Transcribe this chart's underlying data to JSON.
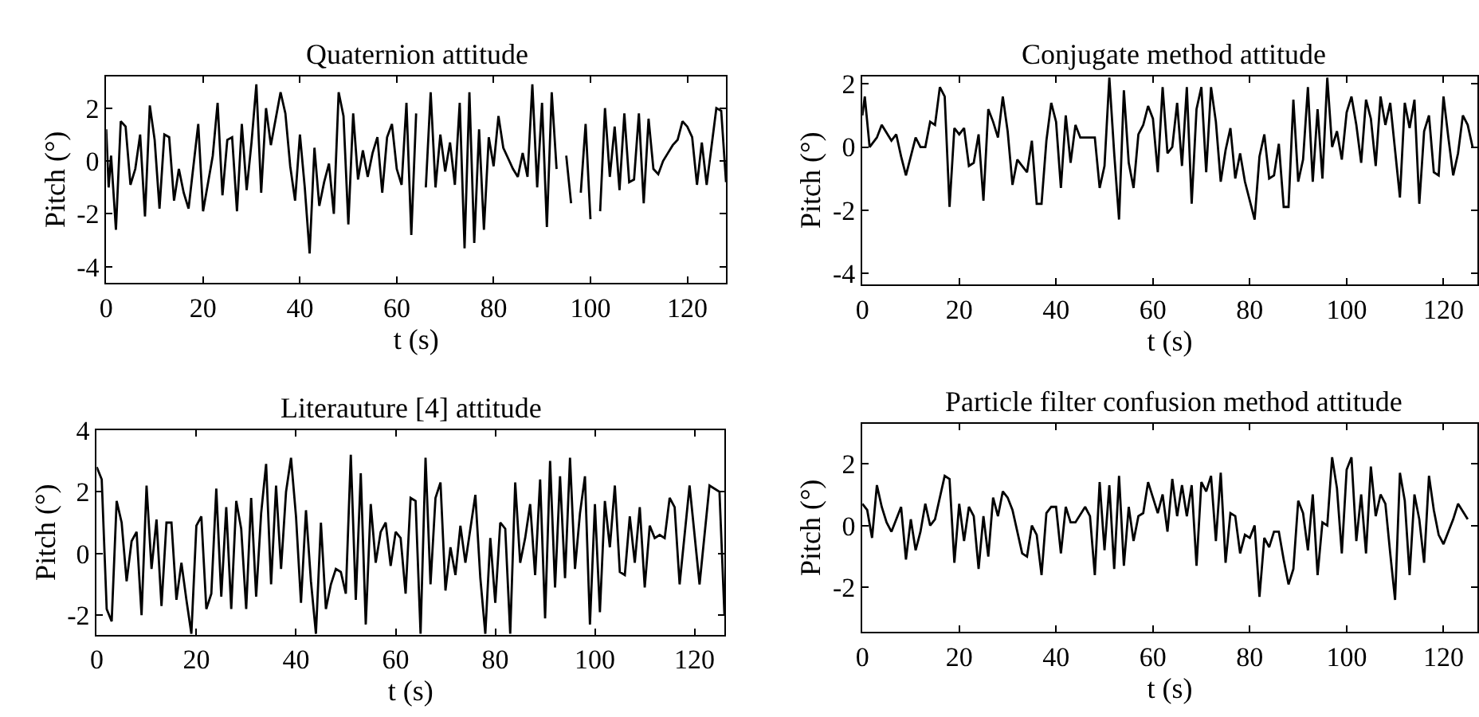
{
  "chart_data": [
    {
      "type": "line",
      "title": "Quaternion attitude",
      "xlabel": "t (s)",
      "ylabel": "Pitch (°)",
      "xlim": [
        0,
        128
      ],
      "ylim": [
        -4.6,
        3.2
      ],
      "xticks": [
        0,
        20,
        40,
        60,
        80,
        100,
        120
      ],
      "yticks": [
        -4,
        -2,
        0,
        2
      ],
      "line_style": "solid",
      "series": [
        {
          "color": "#000000",
          "x": [
            0,
            0.5,
            1,
            2,
            3,
            4,
            5,
            6,
            7,
            8,
            9,
            10,
            11,
            12,
            13,
            14,
            15,
            16,
            17,
            19,
            20,
            22,
            23,
            24,
            25,
            26,
            27,
            28,
            29,
            30,
            31,
            32,
            33,
            34,
            36,
            37,
            38,
            39,
            40,
            41,
            42,
            43,
            44,
            45,
            46,
            47,
            48,
            49,
            50,
            51,
            52,
            53,
            54,
            55,
            56,
            57,
            58,
            59,
            60,
            61,
            62,
            63,
            64,
            65,
            66,
            67,
            68,
            69,
            70,
            71,
            72,
            73,
            74,
            75,
            76,
            77,
            78,
            79,
            80,
            81,
            82,
            83,
            84,
            85,
            86,
            87,
            88,
            89,
            90,
            91,
            92,
            93,
            94,
            95,
            96,
            97,
            98,
            99,
            100,
            101,
            102,
            103,
            104,
            105,
            106,
            107,
            108,
            109,
            110,
            111,
            112,
            113,
            114,
            115,
            116,
            117,
            118,
            119,
            120,
            121,
            122,
            123,
            124,
            126,
            127,
            128
          ],
          "values": [
            1.2,
            -1.0,
            0.2,
            -2.6,
            1.5,
            1.3,
            -0.9,
            -0.3,
            1.0,
            -2.1,
            2.1,
            0.8,
            -1.8,
            1.0,
            0.9,
            -1.5,
            -0.3,
            -1.2,
            -1.8,
            1.4,
            -1.9,
            0.2,
            2.2,
            -1.3,
            0.8,
            0.9,
            -1.9,
            1.4,
            -1.1,
            0.7,
            2.9,
            -1.2,
            2.0,
            0.6,
            2.6,
            1.8,
            -0.2,
            -1.5,
            1.0,
            -1.0,
            -3.5,
            0.5,
            -1.7,
            -0.8,
            -0.1,
            -2.0,
            2.6,
            1.7,
            -2.4,
            1.8,
            -0.7,
            0.4,
            -0.6,
            0.3,
            0.9,
            -1.2,
            0.9,
            1.4,
            -0.3,
            -0.9,
            2.2,
            -2.8,
            1.8,
            null,
            -1.0,
            2.6,
            -1.0,
            1.0,
            -0.4,
            0.7,
            -0.9,
            2.2,
            -3.3,
            2.6,
            -3.1,
            1.2,
            -2.6,
            0.9,
            -0.2,
            1.7,
            0.5,
            0.1,
            -0.3,
            -0.6,
            0.3,
            -0.6,
            2.9,
            -1.0,
            2.2,
            -2.5,
            2.6,
            -0.3,
            null,
            0.2,
            -1.6,
            null,
            -1.2,
            1.4,
            -2.2,
            null,
            -1.9,
            2.0,
            -0.6,
            1.3,
            -1.1,
            1.8,
            -0.8,
            -0.7,
            1.8,
            -1.6,
            1.6,
            -0.3,
            -0.5,
            0.0,
            0.3,
            0.6,
            0.8,
            1.5,
            1.3,
            0.9,
            -0.9,
            0.7,
            -0.9,
            2.0,
            1.9,
            -0.8
          ]
        }
      ]
    },
    {
      "type": "line",
      "title": "Conjugate method attitude",
      "xlabel": "t (s)",
      "ylabel": "Pitch (°)",
      "xlim": [
        0,
        127
      ],
      "ylim": [
        -4.35,
        2.24
      ],
      "xticks": [
        0,
        20,
        40,
        60,
        80,
        100,
        120
      ],
      "yticks": [
        -4,
        -2,
        0,
        2
      ],
      "line_style": "solid",
      "series": [
        {
          "color": "#000000",
          "x": [
            0,
            0.5,
            1.5,
            3,
            4,
            6,
            7,
            8,
            9,
            11,
            12,
            13,
            14,
            15,
            16,
            17,
            18,
            19,
            20,
            21,
            22,
            23,
            24,
            25,
            26,
            27,
            28,
            29,
            30,
            31,
            32,
            33,
            34,
            35,
            36,
            37,
            38,
            39,
            40,
            41,
            42,
            43,
            44,
            45,
            48,
            49,
            50,
            51,
            52,
            53,
            54,
            55,
            56,
            57,
            58,
            59,
            60,
            61,
            62,
            63,
            64,
            65,
            66,
            67,
            68,
            69,
            70,
            71,
            72,
            73,
            74,
            75,
            76,
            77,
            78,
            79,
            81,
            82,
            83,
            84,
            85,
            86,
            87,
            88,
            89,
            90,
            91,
            92,
            93,
            94,
            95,
            96,
            97,
            98,
            99,
            100,
            101,
            102,
            103,
            104,
            105,
            106,
            107,
            108,
            109,
            111,
            112,
            113,
            114,
            115,
            116,
            117,
            118,
            119,
            120,
            121,
            122,
            123,
            124,
            125,
            126
          ],
          "values": [
            1.0,
            1.6,
            0.0,
            0.3,
            0.7,
            0.2,
            0.4,
            -0.3,
            -0.9,
            0.3,
            0.0,
            0.0,
            0.8,
            0.7,
            1.9,
            1.6,
            -1.9,
            0.6,
            0.4,
            0.6,
            -0.6,
            -0.5,
            0.4,
            -1.7,
            1.2,
            0.8,
            0.3,
            1.6,
            0.5,
            -1.2,
            -0.4,
            -0.6,
            -0.8,
            0.2,
            -1.8,
            -1.8,
            0.2,
            1.4,
            0.8,
            -1.3,
            1.0,
            -0.5,
            0.7,
            0.3,
            0.3,
            -1.3,
            -0.6,
            2.2,
            -0.2,
            -2.3,
            1.8,
            -0.5,
            -1.3,
            0.4,
            0.7,
            1.3,
            0.9,
            -0.8,
            1.9,
            -0.2,
            0.0,
            1.4,
            -0.6,
            1.9,
            -1.8,
            1.2,
            1.9,
            -0.8,
            1.9,
            0.8,
            -1.1,
            -0.1,
            0.6,
            -1.0,
            -0.2,
            -1.1,
            -2.3,
            -0.3,
            0.4,
            -1.0,
            -0.9,
            0.1,
            -1.9,
            -1.9,
            1.5,
            -1.1,
            -0.4,
            1.9,
            -1.1,
            1.2,
            -1.0,
            2.2,
            0.0,
            0.5,
            -0.4,
            1.1,
            1.6,
            0.7,
            -0.5,
            1.5,
            0.9,
            -0.6,
            1.6,
            0.7,
            1.4,
            -1.6,
            1.4,
            0.6,
            1.5,
            -1.8,
            0.5,
            1.0,
            -0.8,
            -0.9,
            1.6,
            0.3,
            -0.9,
            -0.2,
            1.0,
            0.7,
            0.0
          ]
        }
      ]
    },
    {
      "type": "line",
      "title": "Literauture [4] attitude",
      "xlabel": "t (s)",
      "ylabel": "Pitch (°)",
      "xlim": [
        0,
        126
      ],
      "ylim": [
        -2.63,
        4
      ],
      "xticks": [
        0,
        20,
        40,
        60,
        80,
        100,
        120
      ],
      "yticks": [
        -2,
        0,
        2,
        4
      ],
      "line_style": "solid",
      "series": [
        {
          "color": "#000000",
          "x": [
            0,
            1,
            2,
            3,
            4,
            5,
            6,
            7,
            8,
            9,
            10,
            11,
            12,
            13,
            14,
            15,
            16,
            17,
            18,
            19,
            20,
            21,
            22,
            23,
            24,
            25,
            26,
            27,
            28,
            29,
            30,
            31,
            32,
            33,
            34,
            35,
            36,
            37,
            38,
            39,
            40,
            41,
            42,
            43,
            44,
            45,
            46,
            47,
            48,
            49,
            50,
            51,
            52,
            53,
            54,
            55,
            56,
            57,
            58,
            59,
            60,
            61,
            62,
            63,
            64,
            65,
            66,
            67,
            68,
            69,
            70,
            71,
            72,
            73,
            74,
            75,
            76,
            77,
            78,
            79,
            80,
            81,
            82,
            83,
            84,
            85,
            86,
            87,
            88,
            89,
            90,
            91,
            92,
            93,
            94,
            95,
            96,
            97,
            98,
            99,
            100,
            101,
            102,
            103,
            104,
            105,
            106,
            107,
            108,
            109,
            110,
            111,
            112,
            113,
            114,
            115,
            116,
            117,
            119,
            121,
            123,
            125,
            126
          ],
          "values": [
            2.8,
            2.4,
            -1.8,
            -2.2,
            1.7,
            1.0,
            -0.9,
            0.4,
            0.7,
            -2.0,
            2.2,
            -0.5,
            1.1,
            -1.7,
            1.0,
            1.0,
            -1.5,
            -0.3,
            -1.5,
            -2.6,
            0.9,
            1.2,
            -1.8,
            -1.3,
            2.1,
            -1.4,
            1.5,
            -1.8,
            1.7,
            0.8,
            -1.8,
            1.8,
            -1.4,
            1.3,
            2.9,
            -1.0,
            2.2,
            -0.5,
            2.0,
            3.1,
            1.2,
            -1.6,
            1.4,
            -0.9,
            -2.6,
            1.0,
            -1.8,
            -1.0,
            -0.5,
            -0.6,
            -1.3,
            3.2,
            -1.5,
            2.6,
            -2.3,
            1.6,
            -0.3,
            0.7,
            1.0,
            -0.4,
            0.7,
            0.5,
            -1.3,
            1.8,
            1.7,
            -2.6,
            3.1,
            -1.0,
            1.8,
            2.3,
            -1.2,
            0.2,
            -0.7,
            0.9,
            -0.3,
            0.8,
            1.9,
            -0.8,
            -2.6,
            0.5,
            -1.6,
            1.0,
            0.8,
            -2.6,
            2.3,
            -0.3,
            0.5,
            1.6,
            -0.7,
            2.4,
            -2.1,
            3.0,
            -1.1,
            2.5,
            -0.8,
            3.1,
            -0.5,
            1.3,
            2.5,
            -2.3,
            1.6,
            -1.9,
            1.7,
            0.2,
            2.2,
            -0.6,
            -0.7,
            1.2,
            -0.3,
            1.5,
            -1.1,
            0.9,
            0.5,
            0.6,
            0.5,
            1.8,
            1.5,
            -1.0,
            2.2,
            -1.0,
            2.2,
            2.0,
            -2.0
          ]
        }
      ]
    },
    {
      "type": "line",
      "title": "Particle filter confusion method attitude",
      "xlabel": "t (s)",
      "ylabel": "Pitch (°)",
      "xlim": [
        0,
        127
      ],
      "ylim": [
        -3.42,
        3.28
      ],
      "xticks": [
        0,
        20,
        40,
        60,
        80,
        100,
        120
      ],
      "yticks": [
        -2,
        0,
        2
      ],
      "line_style": "solid",
      "series": [
        {
          "color": "#000000",
          "x": [
            0,
            1,
            2,
            3,
            4,
            5,
            6,
            8,
            9,
            10,
            11,
            12,
            13,
            14,
            15,
            17,
            18,
            19,
            20,
            21,
            22,
            23,
            24,
            25,
            26,
            27,
            28,
            29,
            30,
            31,
            33,
            34,
            35,
            36,
            37,
            38,
            39,
            40,
            41,
            42,
            43,
            44,
            46,
            47,
            48,
            49,
            50,
            51,
            52,
            53,
            54,
            55,
            56,
            57,
            58,
            59,
            60,
            61,
            62,
            63,
            64,
            65,
            66,
            67,
            68,
            69,
            70,
            71,
            72,
            73,
            74,
            75,
            76,
            77,
            78,
            79,
            80,
            81,
            82,
            83,
            84,
            85,
            86,
            87,
            88,
            89,
            90,
            91,
            92,
            93,
            94,
            95,
            96,
            97,
            98,
            99,
            100,
            101,
            102,
            103,
            104,
            105,
            106,
            107,
            108,
            109,
            110,
            111,
            112,
            113,
            114,
            115,
            116,
            117,
            118,
            119,
            120,
            122,
            123,
            125
          ],
          "values": [
            0.7,
            0.5,
            -0.4,
            1.3,
            0.6,
            0.1,
            -0.2,
            0.6,
            -1.1,
            0.2,
            -0.8,
            -0.2,
            0.7,
            0.0,
            0.2,
            1.6,
            1.5,
            -1.2,
            0.7,
            -0.5,
            0.6,
            0.3,
            -1.4,
            0.3,
            -1.0,
            0.9,
            0.3,
            1.1,
            0.9,
            0.5,
            -0.9,
            -1.0,
            0.0,
            -0.3,
            -1.6,
            0.4,
            0.6,
            0.6,
            -0.9,
            0.6,
            0.1,
            0.1,
            0.6,
            0.3,
            -1.6,
            1.4,
            -0.8,
            1.3,
            -1.4,
            1.6,
            -1.3,
            0.6,
            -0.5,
            0.3,
            0.4,
            1.4,
            0.9,
            0.4,
            1.0,
            -0.2,
            1.5,
            0.3,
            1.3,
            0.3,
            1.3,
            -1.3,
            1.4,
            1.1,
            1.6,
            -0.5,
            1.7,
            -1.2,
            0.4,
            0.3,
            -0.9,
            -0.3,
            -0.4,
            0.0,
            -2.3,
            -0.4,
            -0.7,
            -0.2,
            -0.2,
            -1.1,
            -1.9,
            -1.4,
            0.8,
            0.4,
            -0.8,
            1.0,
            -1.6,
            0.1,
            0.0,
            2.2,
            1.2,
            -0.9,
            1.8,
            2.2,
            -0.5,
            1.0,
            -0.9,
            1.9,
            0.3,
            1.0,
            0.7,
            -0.9,
            -2.4,
            1.7,
            0.8,
            -1.6,
            1.0,
            0.2,
            -1.2,
            1.6,
            0.5,
            -0.3,
            -0.6,
            0.2,
            0.7,
            0.2
          ]
        }
      ]
    }
  ]
}
